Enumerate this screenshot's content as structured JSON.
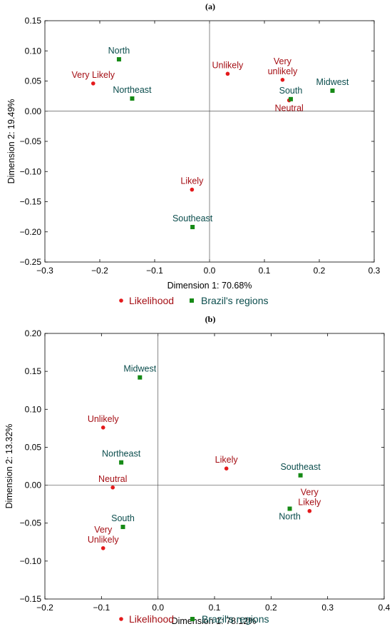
{
  "colors": {
    "likelihood": "#e41a1c",
    "likelihood_label": "#a50f15",
    "regions": "#168a16",
    "regions_label": "#0b4d4d"
  },
  "legend": {
    "likelihood": "Likelihood",
    "regions": "Brazil's regions"
  },
  "chart_data": [
    {
      "type": "scatter",
      "title": "(a)",
      "xlabel": "Dimension 1: 70.68%",
      "ylabel": "Dimension 2: 19.49%",
      "xlim": [
        -0.3,
        0.3
      ],
      "ylim": [
        -0.25,
        0.15
      ],
      "xticks": [
        "−0.3",
        "−0.2",
        "−0.1",
        "0.0",
        "0.1",
        "0.2",
        "0.3"
      ],
      "yticks": [
        "−0.25",
        "−0.20",
        "−0.15",
        "−0.10",
        "−0.05",
        "0.00",
        "0.05",
        "0.10",
        "0.15"
      ],
      "grid": false,
      "legend_position": "bottom",
      "series": [
        {
          "name": "Likelihood",
          "marker": "circle",
          "points": [
            {
              "label": [
                "Very Likely"
              ],
              "x": -0.212,
              "y": 0.046,
              "label_pos": "above"
            },
            {
              "label": [
                "Unlikely"
              ],
              "x": 0.033,
              "y": 0.062,
              "label_pos": "above"
            },
            {
              "label": [
                "Very",
                "unlikely"
              ],
              "x": 0.133,
              "y": 0.052,
              "label_pos": "above"
            },
            {
              "label": [
                "Neutral"
              ],
              "x": 0.145,
              "y": 0.018,
              "label_pos": "below"
            },
            {
              "label": [
                "Likely"
              ],
              "x": -0.032,
              "y": -0.13,
              "label_pos": "above"
            }
          ]
        },
        {
          "name": "Brazil's regions",
          "marker": "square",
          "points": [
            {
              "label": [
                "North"
              ],
              "x": -0.165,
              "y": 0.086,
              "label_pos": "above"
            },
            {
              "label": [
                "Northeast"
              ],
              "x": -0.141,
              "y": 0.021,
              "label_pos": "above"
            },
            {
              "label": [
                "South"
              ],
              "x": 0.148,
              "y": 0.02,
              "label_pos": "above"
            },
            {
              "label": [
                "Midwest"
              ],
              "x": 0.224,
              "y": 0.034,
              "label_pos": "above"
            },
            {
              "label": [
                "Southeast"
              ],
              "x": -0.031,
              "y": -0.192,
              "label_pos": "above"
            }
          ]
        }
      ]
    },
    {
      "type": "scatter",
      "title": "(b)",
      "xlabel": "Dimension 1: 78.12%",
      "ylabel": "Dimension 2: 13.32%",
      "xlim": [
        -0.2,
        0.4
      ],
      "ylim": [
        -0.15,
        0.2
      ],
      "xticks": [
        "−0.2",
        "−0.1",
        "0.0",
        "0.1",
        "0.2",
        "0.3",
        "0.4"
      ],
      "yticks": [
        "−0.15",
        "−0.10",
        "−0.05",
        "0.00",
        "0.05",
        "0.10",
        "0.15",
        "0.20"
      ],
      "grid": false,
      "legend_position": "bottom",
      "series": [
        {
          "name": "Likelihood",
          "marker": "circle",
          "points": [
            {
              "label": [
                "Unlikely"
              ],
              "x": -0.097,
              "y": 0.076,
              "label_pos": "above"
            },
            {
              "label": [
                "Neutral"
              ],
              "x": -0.08,
              "y": -0.003,
              "label_pos": "above"
            },
            {
              "label": [
                "Very",
                "Unlikely"
              ],
              "x": -0.097,
              "y": -0.083,
              "label_pos": "above"
            },
            {
              "label": [
                "Likely"
              ],
              "x": 0.121,
              "y": 0.022,
              "label_pos": "above"
            },
            {
              "label": [
                "Very",
                "Likely"
              ],
              "x": 0.268,
              "y": -0.034,
              "label_pos": "above"
            }
          ]
        },
        {
          "name": "Brazil's regions",
          "marker": "square",
          "points": [
            {
              "label": [
                "Midwest"
              ],
              "x": -0.032,
              "y": 0.142,
              "label_pos": "above"
            },
            {
              "label": [
                "Northeast"
              ],
              "x": -0.065,
              "y": 0.03,
              "label_pos": "above"
            },
            {
              "label": [
                "South"
              ],
              "x": -0.062,
              "y": -0.055,
              "label_pos": "above"
            },
            {
              "label": [
                "Southeast"
              ],
              "x": 0.252,
              "y": 0.013,
              "label_pos": "above"
            },
            {
              "label": [
                "North"
              ],
              "x": 0.233,
              "y": -0.031,
              "label_pos": "below"
            }
          ]
        }
      ]
    }
  ]
}
